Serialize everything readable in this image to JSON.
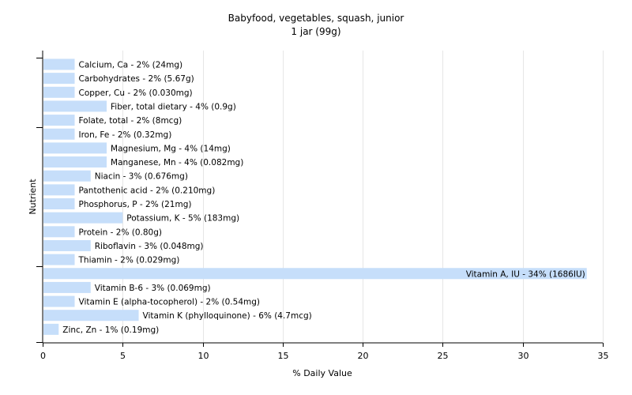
{
  "chart_data": {
    "type": "bar",
    "orientation": "horizontal",
    "title": "Babyfood, vegetables, squash, junior",
    "subtitle": "1 jar (99g)",
    "xlabel": "% Daily Value",
    "ylabel": "Nutrient",
    "xlim": [
      0,
      35
    ],
    "xticks": [
      0,
      5,
      10,
      15,
      20,
      25,
      30,
      35
    ],
    "grid": true,
    "bar_color": "#c6defa",
    "categories": [
      "Calcium, Ca",
      "Carbohydrates",
      "Copper, Cu",
      "Fiber, total dietary",
      "Folate, total",
      "Iron, Fe",
      "Magnesium, Mg",
      "Manganese, Mn",
      "Niacin",
      "Pantothenic acid",
      "Phosphorus, P",
      "Potassium, K",
      "Protein",
      "Riboflavin",
      "Thiamin",
      "Vitamin A, IU",
      "Vitamin B-6",
      "Vitamin E (alpha-tocopherol)",
      "Vitamin K (phylloquinone)",
      "Zinc, Zn"
    ],
    "values": [
      2,
      2,
      2,
      4,
      2,
      2,
      4,
      4,
      3,
      2,
      2,
      5,
      2,
      3,
      2,
      34,
      3,
      2,
      6,
      1
    ],
    "labels": [
      "Calcium, Ca - 2% (24mg)",
      "Carbohydrates - 2% (5.67g)",
      "Copper, Cu - 2% (0.030mg)",
      "Fiber, total dietary - 4% (0.9g)",
      "Folate, total - 2% (8mcg)",
      "Iron, Fe - 2% (0.32mg)",
      "Magnesium, Mg - 4% (14mg)",
      "Manganese, Mn - 4% (0.082mg)",
      "Niacin - 3% (0.676mg)",
      "Pantothenic acid - 2% (0.210mg)",
      "Phosphorus, P - 2% (21mg)",
      "Potassium, K - 5% (183mg)",
      "Protein - 2% (0.80g)",
      "Riboflavin - 3% (0.048mg)",
      "Thiamin - 2% (0.029mg)",
      "Vitamin A, IU - 34% (1686IU)",
      "Vitamin B-6 - 3% (0.069mg)",
      "Vitamin E (alpha-tocopherol) - 2% (0.54mg)",
      "Vitamin K (phylloquinone) - 6% (4.7mcg)",
      "Zinc, Zn - 1% (0.19mg)"
    ]
  }
}
